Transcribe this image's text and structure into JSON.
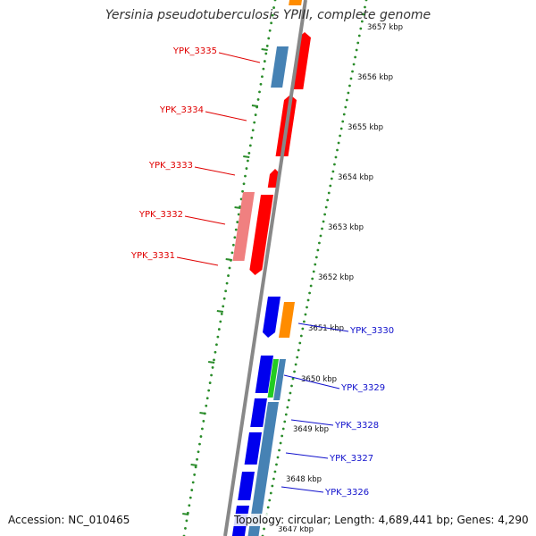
{
  "title": "Yersinia pseudotuberculosis YPIII, complete genome",
  "footer": {
    "accession": "Accession: NC_010465",
    "summary": "Topology: circular; Length: 4,689,441 bp; Genes: 4,290"
  },
  "colors": {
    "backbone": "#888888",
    "gc_dots": "#2a8c2a",
    "tick_dashes": "#2a8c2a",
    "gene_red": "#ff0000",
    "gene_pink": "#f08080",
    "gene_steelblue": "#4682b4",
    "gene_blue": "#0000ee",
    "gene_orange": "#ff8c00",
    "gene_green": "#22cc22",
    "label_red": "#e00000",
    "label_blue": "#1010cc"
  },
  "scale_labels": [
    "3657 kbp",
    "3656 kbp",
    "3655 kbp",
    "3654 kbp",
    "3653 kbp",
    "3652 kbp",
    "3651 kbp",
    "3650 kbp",
    "3649 kbp",
    "3648 kbp",
    "3647 kbp"
  ],
  "gene_labels": [
    {
      "text": "YPK_3335",
      "color": "red"
    },
    {
      "text": "YPK_3334",
      "color": "red"
    },
    {
      "text": "YPK_3333",
      "color": "red"
    },
    {
      "text": "YPK_3332",
      "color": "red"
    },
    {
      "text": "YPK_3331",
      "color": "red"
    },
    {
      "text": "YPK_3330",
      "color": "blue"
    },
    {
      "text": "YPK_3329",
      "color": "blue"
    },
    {
      "text": "YPK_3328",
      "color": "blue"
    },
    {
      "text": "YPK_3327",
      "color": "blue"
    },
    {
      "text": "YPK_3326",
      "color": "blue"
    }
  ]
}
